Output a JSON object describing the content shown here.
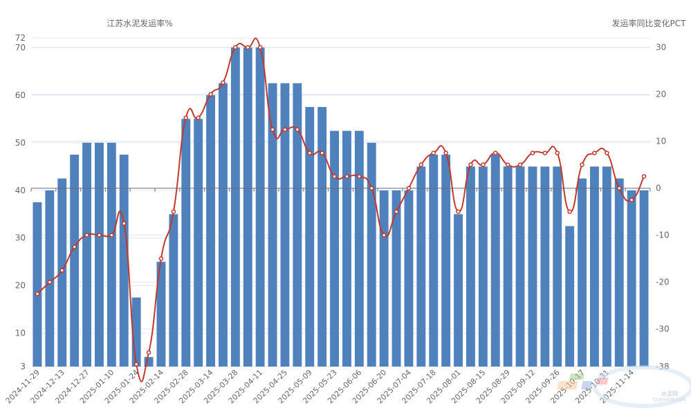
{
  "chart_data": {
    "type": "bar+line",
    "left_axis_title": "江苏水泥发运率%",
    "right_axis_title": "发运率同比变化PCT",
    "left_ylim": [
      3,
      72
    ],
    "right_ylim": [
      -38,
      32
    ],
    "left_ticks": [
      3,
      10,
      20,
      30,
      40,
      50,
      60,
      70,
      72
    ],
    "right_ticks": [
      -38,
      -30,
      -20,
      -10,
      0,
      10,
      20,
      30
    ],
    "grid": true,
    "bar_color": "#4f81bd",
    "line_color": "#c0392b",
    "x_labels": [
      "2024-11-29",
      "2024-12-13",
      "2024-12-27",
      "2025-01-10",
      "2025-01-24",
      "2025-02-14",
      "2025-02-28",
      "2025-03-14",
      "2025-03-28",
      "2025-04-11",
      "2025-04-25",
      "2025-05-09",
      "2025-05-23",
      "2025-06-06",
      "2025-06-20",
      "2025-07-04",
      "2025-07-18",
      "2025-08-01",
      "2025-08-15",
      "2025-08-29",
      "2025-09-12",
      "2025-09-26",
      "2025-10-17",
      "2025-10-31",
      "2025-11-14"
    ],
    "bars": [
      37.5,
      40,
      42.5,
      47.5,
      50,
      50,
      50,
      47.5,
      17.5,
      5,
      25,
      35,
      55,
      55,
      60,
      62.5,
      70,
      70,
      70,
      62.5,
      62.5,
      62.5,
      57.5,
      57.5,
      52.5,
      52.5,
      52.5,
      50,
      40,
      40,
      40,
      45,
      47.5,
      47.5,
      35,
      45,
      45,
      47.5,
      45,
      45,
      45,
      45,
      45,
      32.5,
      42.5,
      45,
      45,
      42.5,
      40,
      40
    ],
    "line": [
      -22.5,
      -20,
      -17.5,
      -12.5,
      -10,
      -10,
      -10,
      -7.5,
      -37.5,
      -35,
      -15,
      -5,
      15,
      15,
      20,
      22.5,
      30,
      30,
      30,
      12.5,
      12.5,
      12.5,
      7.5,
      7.5,
      2.5,
      2.5,
      2.5,
      0,
      -10,
      -5,
      0,
      5,
      7.5,
      7.5,
      -5,
      5,
      5,
      7.5,
      5,
      5,
      7.5,
      7.5,
      7.5,
      -5,
      5,
      7.5,
      7.5,
      0,
      -2.5,
      2.5
    ]
  },
  "watermark": {
    "text_cn": "水泥网",
    "text_en": "Ccement.com"
  }
}
